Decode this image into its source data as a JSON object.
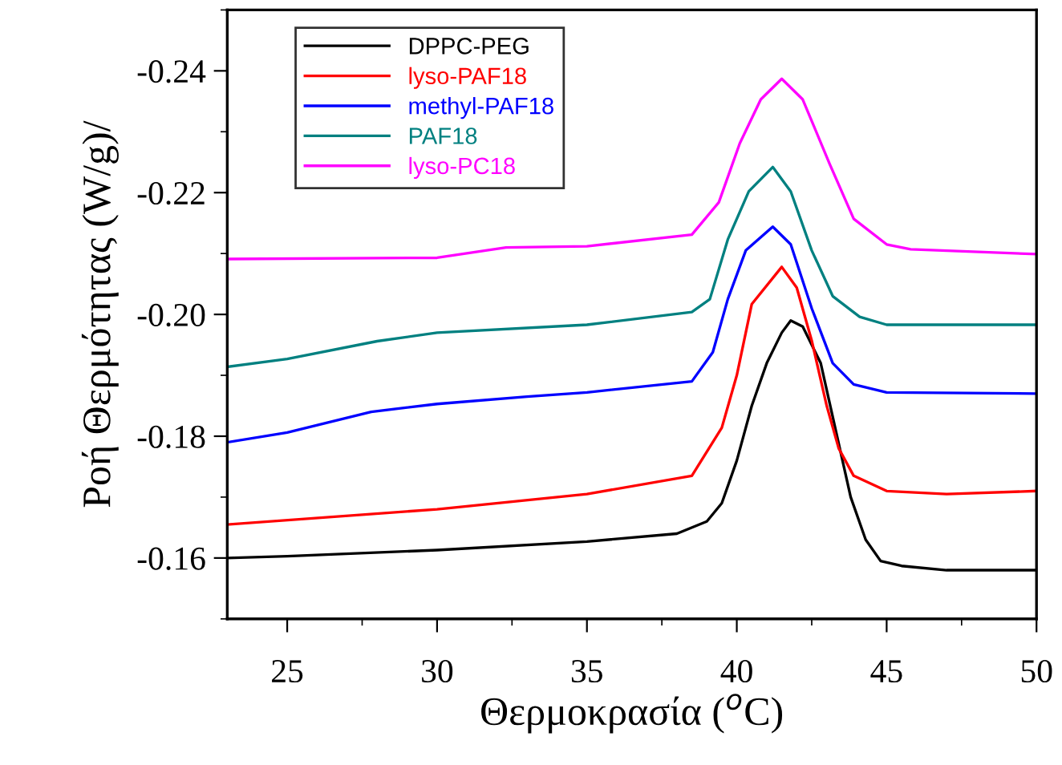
{
  "chart_data": {
    "type": "line",
    "xlabel": "Θερμοκρασία ($^{o}$C)",
    "ylabel": "Ροή Θερμότητας (W/g)/",
    "xlim": [
      23,
      50
    ],
    "xticks": [
      25,
      30,
      35,
      40,
      45,
      50
    ],
    "ylim": [
      -0.15,
      -0.25
    ],
    "yticks": [
      {
        "value": -0.24,
        "label": "-0.24"
      },
      {
        "value": -0.22,
        "label": "-0.22"
      },
      {
        "value": -0.2,
        "label": "-0.20"
      },
      {
        "value": -0.18,
        "label": "-0.18"
      },
      {
        "value": -0.16,
        "label": "-0.16"
      }
    ],
    "grid": false,
    "legend": "top left",
    "marker": "none",
    "line_style": "solid",
    "series": [
      {
        "name": "DPPC-PEG",
        "color": "#000000",
        "x": [
          23,
          25,
          30,
          35,
          38,
          39,
          39.5,
          40,
          40.5,
          41,
          41.5,
          41.8,
          42.2,
          42.8,
          43.3,
          43.8,
          44.3,
          44.8,
          45.5,
          47,
          50
        ],
        "values": [
          -0.16,
          -0.1603,
          -0.1613,
          -0.1627,
          -0.164,
          -0.166,
          -0.169,
          -0.176,
          -0.185,
          -0.192,
          -0.197,
          -0.199,
          -0.198,
          -0.192,
          -0.181,
          -0.17,
          -0.163,
          -0.1595,
          -0.1587,
          -0.158,
          -0.158
        ]
      },
      {
        "name": "lyso-PAF18",
        "color": "#ff0000",
        "x": [
          23,
          30,
          35,
          38.5,
          39.5,
          40,
          40.5,
          41.5,
          42,
          42.5,
          43,
          43.4,
          43.9,
          45,
          47,
          50
        ],
        "values": [
          -0.1655,
          -0.168,
          -0.1705,
          -0.1735,
          -0.1814,
          -0.19,
          -0.2017,
          -0.2078,
          -0.2044,
          -0.1957,
          -0.185,
          -0.178,
          -0.1735,
          -0.171,
          -0.1705,
          -0.171
        ]
      },
      {
        "name": "methyl-PAF18",
        "color": "#0000ff",
        "x": [
          23,
          25,
          27.8,
          30,
          33,
          35,
          38.5,
          39.2,
          39.7,
          40.3,
          41.2,
          41.8,
          42.5,
          43.2,
          43.9,
          45,
          50
        ],
        "values": [
          -0.179,
          -0.1806,
          -0.184,
          -0.1853,
          -0.1865,
          -0.1872,
          -0.189,
          -0.1938,
          -0.2025,
          -0.2105,
          -0.2144,
          -0.2115,
          -0.201,
          -0.192,
          -0.1885,
          -0.1872,
          -0.187
        ]
      },
      {
        "name": "PAF18",
        "color": "#008080",
        "x": [
          23,
          25,
          28,
          30,
          35,
          38.5,
          39.1,
          39.7,
          40.4,
          41.2,
          41.8,
          42.5,
          43.2,
          44.1,
          45,
          50
        ],
        "values": [
          -0.1914,
          -0.1927,
          -0.1956,
          -0.197,
          -0.1983,
          -0.2004,
          -0.2025,
          -0.2123,
          -0.2202,
          -0.2242,
          -0.2202,
          -0.2105,
          -0.203,
          -0.1996,
          -0.1983,
          -0.1983
        ]
      },
      {
        "name": "lyso-PC18",
        "color": "#ff00ff",
        "x": [
          23,
          30,
          32.3,
          35,
          38.5,
          39.4,
          40.1,
          40.8,
          41.5,
          42.2,
          43.1,
          43.9,
          45,
          45.8,
          50
        ],
        "values": [
          -0.2091,
          -0.2093,
          -0.211,
          -0.2112,
          -0.2131,
          -0.2184,
          -0.2281,
          -0.2353,
          -0.2387,
          -0.2353,
          -0.2247,
          -0.2157,
          -0.2115,
          -0.2107,
          -0.2099
        ]
      }
    ]
  }
}
